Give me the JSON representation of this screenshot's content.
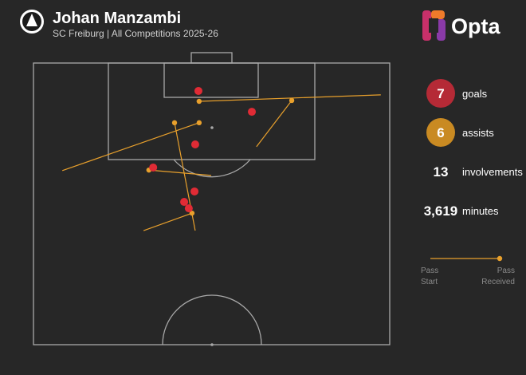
{
  "header": {
    "title": "Johan Manzambi",
    "subtitle": "SC Freiburg | All Competitions 2025-26",
    "brand": "Opta"
  },
  "stats": [
    {
      "value": "7",
      "label": "goals",
      "color": "#b52a36"
    },
    {
      "value": "6",
      "label": "assists",
      "color": "#c98a22"
    },
    {
      "value": "13",
      "label": "involvements"
    },
    {
      "value": "3,619",
      "label": "minutes"
    }
  ],
  "legend": {
    "start": [
      "Pass",
      "Start"
    ],
    "received": [
      "Pass",
      "Received"
    ]
  },
  "pitch": {
    "goal_color": "#e02b35",
    "assist_color": "#e8a02c",
    "goals": [
      {
        "x": 46.3,
        "y": 9.9
      },
      {
        "x": 61.3,
        "y": 17.3
      },
      {
        "x": 45.4,
        "y": 28.9
      },
      {
        "x": 33.6,
        "y": 37.1
      },
      {
        "x": 45.2,
        "y": 45.6
      },
      {
        "x": 42.3,
        "y": 49.3
      },
      {
        "x": 43.6,
        "y": 51.6
      }
    ],
    "assists": [
      {
        "start_x": 97.5,
        "start_y": 11.3,
        "end_x": 46.5,
        "end_y": 13.6
      },
      {
        "start_x": 62.6,
        "start_y": 29.7,
        "end_x": 72.5,
        "end_y": 13.3
      },
      {
        "start_x": 8.1,
        "start_y": 38.2,
        "end_x": 46.5,
        "end_y": 21.2
      },
      {
        "start_x": 45.4,
        "start_y": 59.5,
        "end_x": 39.6,
        "end_y": 21.2
      },
      {
        "start_x": 30.9,
        "start_y": 59.5,
        "end_x": 44.5,
        "end_y": 53.3
      },
      {
        "start_x": 49.9,
        "start_y": 39.9,
        "end_x": 32.4,
        "end_y": 38.0
      }
    ]
  }
}
